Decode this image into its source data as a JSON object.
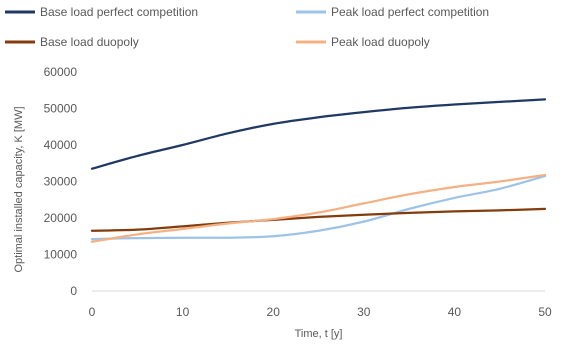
{
  "chart_data": {
    "type": "line",
    "title": "",
    "xlabel": "Time, t [y]",
    "ylabel": "Optimal installed capacity, K [MW]",
    "xlim": [
      0,
      50
    ],
    "ylim": [
      0,
      60000
    ],
    "x_ticks": [
      0,
      10,
      20,
      30,
      40,
      50
    ],
    "y_ticks": [
      0,
      10000,
      20000,
      30000,
      40000,
      50000,
      60000
    ],
    "grid": false,
    "legend_position": "top",
    "x": [
      0,
      5,
      10,
      15,
      20,
      25,
      30,
      35,
      40,
      45,
      50
    ],
    "series": [
      {
        "name": "Base load perfect competition",
        "color": "#203864",
        "values": [
          33500,
          37000,
          40000,
          43200,
          45800,
          47600,
          49000,
          50200,
          51100,
          51800,
          52500
        ]
      },
      {
        "name": "Peak load perfect competition",
        "color": "#9DC3E6",
        "values": [
          14200,
          14500,
          14600,
          14600,
          15000,
          16500,
          19000,
          22500,
          25500,
          28000,
          31500
        ]
      },
      {
        "name": "Base load duopoly",
        "color": "#843C0C",
        "values": [
          16500,
          16800,
          17700,
          18700,
          19500,
          20300,
          20900,
          21400,
          21800,
          22100,
          22500
        ]
      },
      {
        "name": "Peak load duopoly",
        "color": "#F4B183",
        "values": [
          13500,
          15500,
          17000,
          18500,
          19700,
          21500,
          24000,
          26500,
          28500,
          30000,
          31800
        ]
      }
    ]
  }
}
